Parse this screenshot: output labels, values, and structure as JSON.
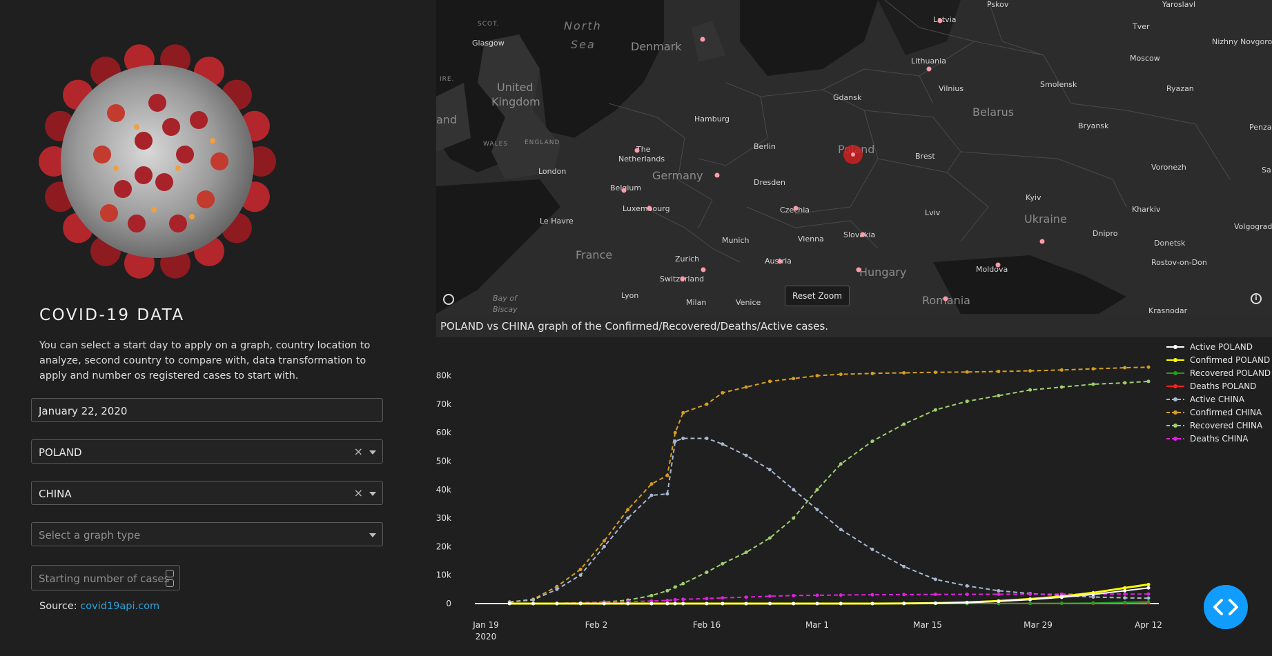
{
  "sidebar": {
    "title": "COVID-19 DATA",
    "description": "You can select a start day to apply on a graph, country location to analyze, second country to compare with, data transformation to apply and number os registered cases to start with.",
    "date_value": "January 22, 2020",
    "country1_value": "POLAND",
    "country2_value": "CHINA",
    "graph_type_placeholder": "Select a graph type",
    "start_cases_placeholder": "Starting number of cases",
    "clear_glyph": "×",
    "source_label": "Source:",
    "source_link": "covid19api.com"
  },
  "map": {
    "reset_zoom": "Reset Zoom",
    "highlight_color": "#cc2020",
    "marker_color": "#ff9aa8",
    "labels": {
      "north_sea": "North",
      "north_sea2": "Sea",
      "bay": "Bay of",
      "bay2": "Biscay",
      "scot": "SCOT.",
      "ire": "IRE.",
      "wales": "WALES",
      "england": "ENGLAND",
      "uk": "United",
      "uk2": "Kingdom",
      "ireland": "and",
      "denmark": "Denmark",
      "germany": "Germany",
      "france": "France",
      "poland": "Poland",
      "belarus": "Belarus",
      "ukraine": "Ukraine",
      "hungary": "Hungary",
      "romania": "Romania",
      "lithuania": "Lithuania",
      "latvia": "Latvia",
      "czechia": "Czechia",
      "slovakia": "Slovakia",
      "austria": "Austria",
      "switzerland": "Switzerland",
      "luxembourg": "Luxembourg",
      "belgium": "Belgium",
      "netherlands": "The",
      "netherlands2": "Netherlands",
      "moldova": "Moldova",
      "glasgow": "Glasgow",
      "london": "London",
      "le_havre": "Le Havre",
      "hamburg": "Hamburg",
      "berlin": "Berlin",
      "dresden": "Dresden",
      "munich": "Munich",
      "zurich": "Zurich",
      "lyon": "Lyon",
      "milan": "Milan",
      "venice": "Venice",
      "vienna": "Vienna",
      "gdansk": "Gdansk",
      "vilnius": "Vilnius",
      "brest": "Brest",
      "lviv": "Lviv",
      "kyiv": "Kyiv",
      "kharkiv": "Kharkiv",
      "dnipro": "Dnipro",
      "donetsk": "Donetsk",
      "rostov": "Rostov-on-Don",
      "krasnodar": "Krasnodar",
      "voronezh": "Voronezh",
      "bryansk": "Bryansk",
      "smolensk": "Smolensk",
      "moscow": "Moscow",
      "ryazan": "Ryazan",
      "tver": "Tver",
      "yaroslavl": "Yaroslavl",
      "nizhny": "Nizhny Novgorod",
      "penza": "Penza",
      "volgograd": "Volgograd",
      "pskov": "Pskov",
      "sa": "Sa"
    }
  },
  "caption": "POLAND vs CHINA graph of the Confirmed/Recovered/Deaths/Active cases.",
  "chart_data": {
    "type": "line",
    "title": "",
    "xlabel": "",
    "ylabel": "",
    "x_ticks": [
      "Jan 19",
      "Feb 2",
      "Feb 16",
      "Mar 1",
      "Mar 15",
      "Mar 29",
      "Apr 12"
    ],
    "x_tick_year": "2020",
    "y_ticks": [
      "0",
      "10k",
      "20k",
      "30k",
      "40k",
      "50k",
      "60k",
      "70k",
      "80k"
    ],
    "ylim": [
      0,
      85000
    ],
    "x": [
      "2020-01-22",
      "2020-01-25",
      "2020-01-28",
      "2020-01-31",
      "2020-02-03",
      "2020-02-06",
      "2020-02-09",
      "2020-02-11",
      "2020-02-12",
      "2020-02-13",
      "2020-02-16",
      "2020-02-18",
      "2020-02-21",
      "2020-02-24",
      "2020-02-27",
      "2020-03-01",
      "2020-03-04",
      "2020-03-08",
      "2020-03-12",
      "2020-03-16",
      "2020-03-20",
      "2020-03-24",
      "2020-03-28",
      "2020-04-01",
      "2020-04-05",
      "2020-04-09",
      "2020-04-12"
    ],
    "series": [
      {
        "name": "Active POLAND",
        "color": "#ffffff",
        "dash": "solid",
        "values": [
          0,
          0,
          0,
          0,
          0,
          0,
          0,
          0,
          0,
          0,
          0,
          0,
          0,
          0,
          0,
          0,
          0,
          0,
          30,
          120,
          350,
          800,
          1400,
          2200,
          3200,
          4500,
          5500
        ]
      },
      {
        "name": "Confirmed POLAND",
        "color": "#ffff00",
        "dash": "solid",
        "values": [
          0,
          0,
          0,
          0,
          0,
          0,
          0,
          0,
          0,
          0,
          0,
          0,
          0,
          0,
          0,
          0,
          0,
          10,
          50,
          150,
          400,
          900,
          1600,
          2500,
          3800,
          5500,
          6700
        ]
      },
      {
        "name": "Recovered POLAND",
        "color": "#20a020",
        "dash": "solid",
        "values": [
          0,
          0,
          0,
          0,
          0,
          0,
          0,
          0,
          0,
          0,
          0,
          0,
          0,
          0,
          0,
          0,
          0,
          0,
          0,
          0,
          10,
          20,
          50,
          100,
          200,
          400,
          600
        ]
      },
      {
        "name": "Deaths POLAND",
        "color": "#ff2020",
        "dash": "solid",
        "values": [
          0,
          0,
          0,
          0,
          0,
          0,
          0,
          0,
          0,
          0,
          0,
          0,
          0,
          0,
          0,
          0,
          0,
          0,
          0,
          0,
          5,
          20,
          40,
          70,
          100,
          180,
          250
        ]
      },
      {
        "name": "Active CHINA",
        "color": "#a8b8d0",
        "dash": "dash",
        "values": [
          550,
          1300,
          5000,
          10000,
          20000,
          30000,
          38000,
          38500,
          57000,
          58000,
          58000,
          56000,
          52000,
          47000,
          40000,
          33000,
          26000,
          19000,
          13000,
          8500,
          6200,
          4500,
          3500,
          2800,
          2300,
          2000,
          1900
        ]
      },
      {
        "name": "Confirmed CHINA",
        "color": "#d4a020",
        "dash": "dash",
        "values": [
          550,
          1500,
          6000,
          12000,
          22000,
          33000,
          42000,
          45000,
          60000,
          67000,
          70000,
          74000,
          76000,
          78000,
          79000,
          80000,
          80500,
          80800,
          81000,
          81200,
          81300,
          81500,
          81700,
          82000,
          82400,
          82800,
          83000
        ]
      },
      {
        "name": "Recovered CHINA",
        "color": "#a0d070",
        "dash": "dash",
        "values": [
          30,
          40,
          100,
          250,
          500,
          1200,
          2800,
          4500,
          5800,
          7000,
          11000,
          14000,
          18000,
          23000,
          30000,
          40000,
          49000,
          57000,
          63000,
          68000,
          71000,
          73000,
          75000,
          76000,
          77000,
          77500,
          78000
        ]
      },
      {
        "name": "Deaths CHINA",
        "color": "#e020e0",
        "dash": "dash",
        "values": [
          17,
          40,
          130,
          250,
          420,
          630,
          900,
          1100,
          1360,
          1500,
          1770,
          2000,
          2250,
          2600,
          2800,
          2900,
          3000,
          3100,
          3170,
          3230,
          3250,
          3280,
          3300,
          3310,
          3330,
          3340,
          3340
        ]
      }
    ],
    "legend_position": "top-right",
    "grid": false
  }
}
